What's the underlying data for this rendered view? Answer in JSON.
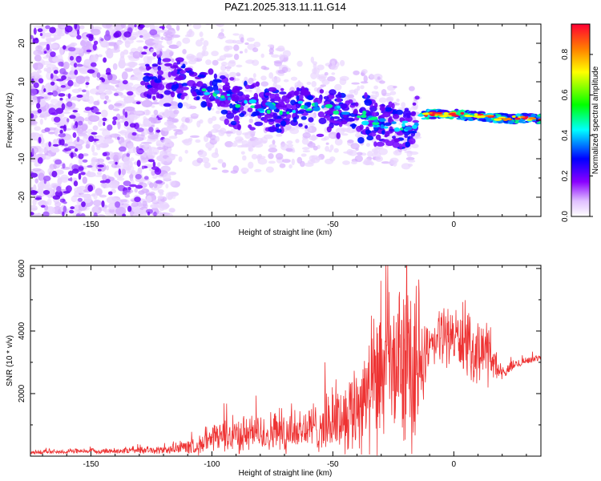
{
  "title": "PAZ1.2025.313.11.11.G14",
  "chart_data": [
    {
      "type": "heatmap",
      "name": "spectrogram",
      "xlabel": "Height of straight line (km)",
      "ylabel": "Frequency (Hz)",
      "xlim": [
        -175,
        36
      ],
      "ylim": [
        -25,
        25
      ],
      "x_ticks": [
        -150,
        -100,
        -50,
        0
      ],
      "x_tick_labels": [
        "-150",
        "-100",
        "-50",
        "0"
      ],
      "y_ticks": [
        20,
        10,
        0,
        -10,
        -20
      ],
      "y_tick_labels": [
        "20",
        "10",
        "0",
        "-10",
        "-20"
      ],
      "ridge": {
        "description": "frequency of main spectral ridge vs height",
        "x": [
          -125,
          -115,
          -105,
          -95,
          -85,
          -75,
          -65,
          -55,
          -45,
          -35,
          -25,
          -18,
          -12,
          0,
          10,
          20,
          36
        ],
        "y": [
          10,
          10,
          8.5,
          5.5,
          4,
          3,
          3.5,
          3,
          2,
          0.5,
          -1.5,
          -2,
          1.5,
          1.5,
          1,
          0.5,
          0.3
        ]
      },
      "colorbar": {
        "label": "Normalized spectral amplitude",
        "range": [
          0,
          0.95
        ],
        "ticks": [
          0.0,
          0.2,
          0.4,
          0.6,
          0.8
        ],
        "tick_labels": [
          "0.0",
          "0.2",
          "0.4",
          "0.6",
          "0.8"
        ],
        "colormap": [
          "#ffffff",
          "#d9b3ff",
          "#7b00ff",
          "#0000ff",
          "#00ffff",
          "#00ff00",
          "#ffff00",
          "#ff8000",
          "#ff0000"
        ]
      }
    },
    {
      "type": "line",
      "name": "snr",
      "xlabel": "Height of straight line (km)",
      "ylabel": "SNR (10 * v/v)",
      "xlim": [
        -175,
        36
      ],
      "ylim": [
        0,
        6100
      ],
      "x_ticks": [
        -150,
        -100,
        -50,
        0
      ],
      "x_tick_labels": [
        "-150",
        "-100",
        "-50",
        "0"
      ],
      "y_ticks": [
        2000,
        4000,
        6000
      ],
      "y_tick_labels": [
        "2000",
        "4000",
        "6000"
      ],
      "series": [
        {
          "name": "SNR",
          "color": "#ee3333",
          "envelope_x": [
            -175,
            -150,
            -120,
            -105,
            -95,
            -85,
            -75,
            -65,
            -55,
            -45,
            -40,
            -35,
            -30,
            -25,
            -20,
            -15,
            -12,
            -10,
            -5,
            0,
            5,
            10,
            15,
            18,
            20,
            25,
            30,
            36
          ],
          "envelope_base": [
            120,
            150,
            180,
            320,
            600,
            650,
            700,
            750,
            900,
            1200,
            1500,
            1800,
            2300,
            2600,
            2800,
            2500,
            3000,
            3300,
            3800,
            3800,
            3400,
            3200,
            3300,
            2700,
            2600,
            2900,
            3050,
            3150
          ],
          "envelope_amp": [
            90,
            100,
            150,
            350,
            700,
            700,
            800,
            850,
            1000,
            1400,
            1900,
            2300,
            2800,
            3000,
            3100,
            3400,
            1200,
            900,
            1200,
            1100,
            1200,
            1100,
            1300,
            600,
            250,
            200,
            150,
            100
          ]
        }
      ]
    }
  ]
}
